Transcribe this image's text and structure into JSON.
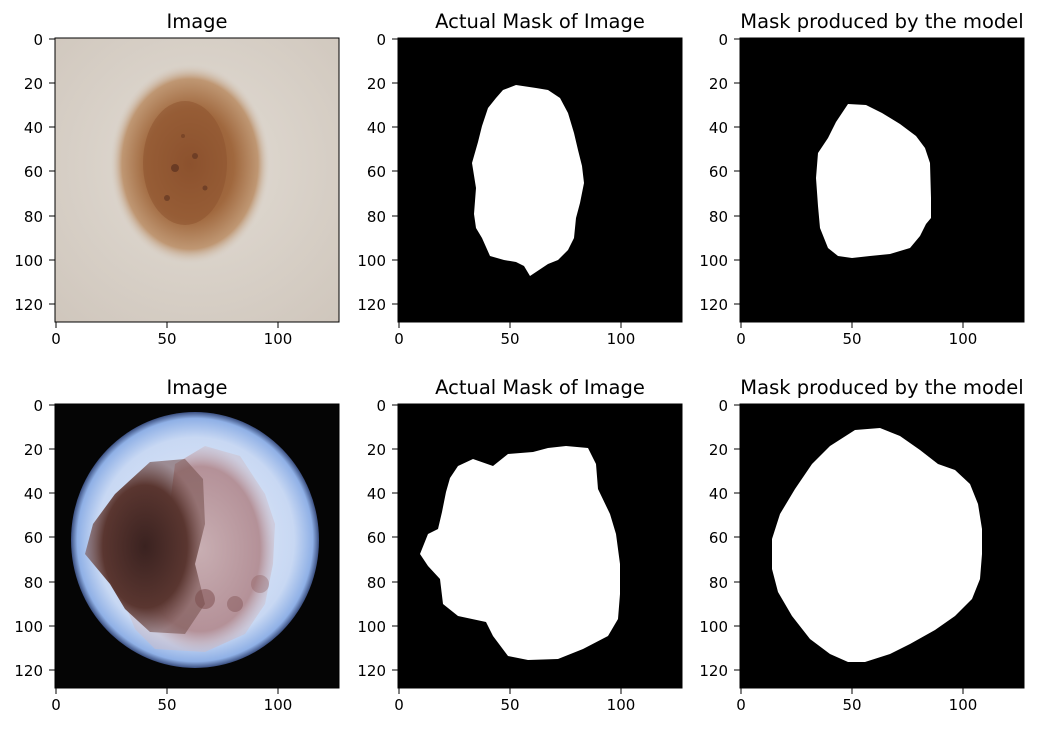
{
  "figure": {
    "rows": [
      {
        "panels": [
          {
            "title": "Image",
            "kind": "skin-image-1",
            "x_ticks": [
              "0",
              "50",
              "100"
            ],
            "y_ticks": [
              "0",
              "20",
              "40",
              "60",
              "80",
              "100",
              "120"
            ]
          },
          {
            "title": "Actual Mask of Image",
            "kind": "mask-truth-1",
            "x_ticks": [
              "0",
              "50",
              "100"
            ],
            "y_ticks": [
              "0",
              "20",
              "40",
              "60",
              "80",
              "100",
              "120"
            ]
          },
          {
            "title": "Mask produced by the model",
            "kind": "mask-pred-1",
            "x_ticks": [
              "0",
              "50",
              "100"
            ],
            "y_ticks": [
              "0",
              "20",
              "40",
              "60",
              "80",
              "100",
              "120"
            ]
          }
        ]
      },
      {
        "panels": [
          {
            "title": "Image",
            "kind": "skin-image-2",
            "x_ticks": [
              "0",
              "50",
              "100"
            ],
            "y_ticks": [
              "0",
              "20",
              "40",
              "60",
              "80",
              "100",
              "120"
            ]
          },
          {
            "title": "Actual Mask of Image",
            "kind": "mask-truth-2",
            "x_ticks": [
              "0",
              "50",
              "100"
            ],
            "y_ticks": [
              "0",
              "20",
              "40",
              "60",
              "80",
              "100",
              "120"
            ]
          },
          {
            "title": "Mask produced by the model",
            "kind": "mask-pred-2",
            "x_ticks": [
              "0",
              "50",
              "100"
            ],
            "y_ticks": [
              "0",
              "20",
              "40",
              "60",
              "80",
              "100",
              "120"
            ]
          }
        ]
      }
    ],
    "axis_range": [
      0,
      128
    ],
    "colors": {
      "mask_background": "#000000",
      "mask_foreground": "#ffffff",
      "skin_light": "#d8d2cb",
      "lesion_brown": "#9a6236",
      "lesion_dark": "#4a2a22",
      "scope_ring": "#bcd0f0",
      "lesion_pink": "#c9b0b4"
    }
  }
}
